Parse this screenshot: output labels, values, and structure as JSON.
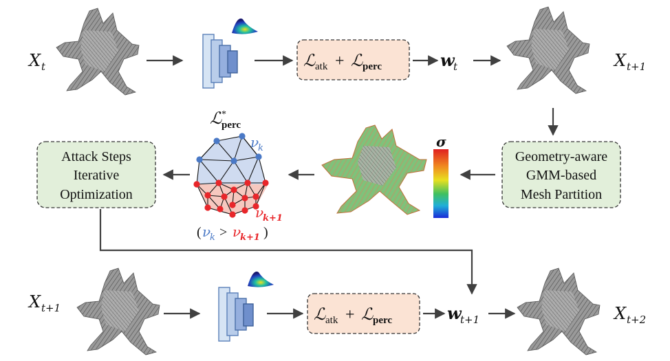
{
  "nodes": {
    "x_t": {
      "base": "X",
      "sub": "t"
    },
    "x_t1_top": {
      "base": "X",
      "sub": "t+1"
    },
    "x_t1_bottom": {
      "base": "X",
      "sub": "t+1"
    },
    "x_t2": {
      "base": "X",
      "sub": "t+2"
    },
    "w_t": {
      "base": "w",
      "sub": "t"
    },
    "w_t1": {
      "base": "w",
      "sub": "t+1"
    }
  },
  "loss_box": {
    "term1": "ℒ",
    "term1_sub": "atk",
    "plus": "+",
    "term2": "ℒ",
    "term2_sub": "perc"
  },
  "partition_box": {
    "line1": "Geometry-aware",
    "line2": "GMM-based",
    "line3": "Mesh Partition"
  },
  "attack_box": {
    "line1": "Attack Steps",
    "line2": "Iterative",
    "line3": "Optimization"
  },
  "colorbar": {
    "label": "σ"
  },
  "perc_star": {
    "symbol": "ℒ",
    "sup": "*",
    "sub": "perc"
  },
  "mesh_labels": {
    "vk": {
      "base": "ν",
      "sub": "k"
    },
    "vk1": {
      "base": "ν",
      "sub": "k+1"
    },
    "cond_open": "(",
    "cond_gt": ">",
    "cond_close": ")"
  },
  "colors": {
    "loss_fill": "#fbe3d4",
    "partition_fill": "#e2efda",
    "blue_vertex": "#4a79c6",
    "red_vertex": "#e8262a",
    "upper_region": "#cfdbf0",
    "lower_region": "#f6c8bf",
    "arrow": "#404040"
  }
}
